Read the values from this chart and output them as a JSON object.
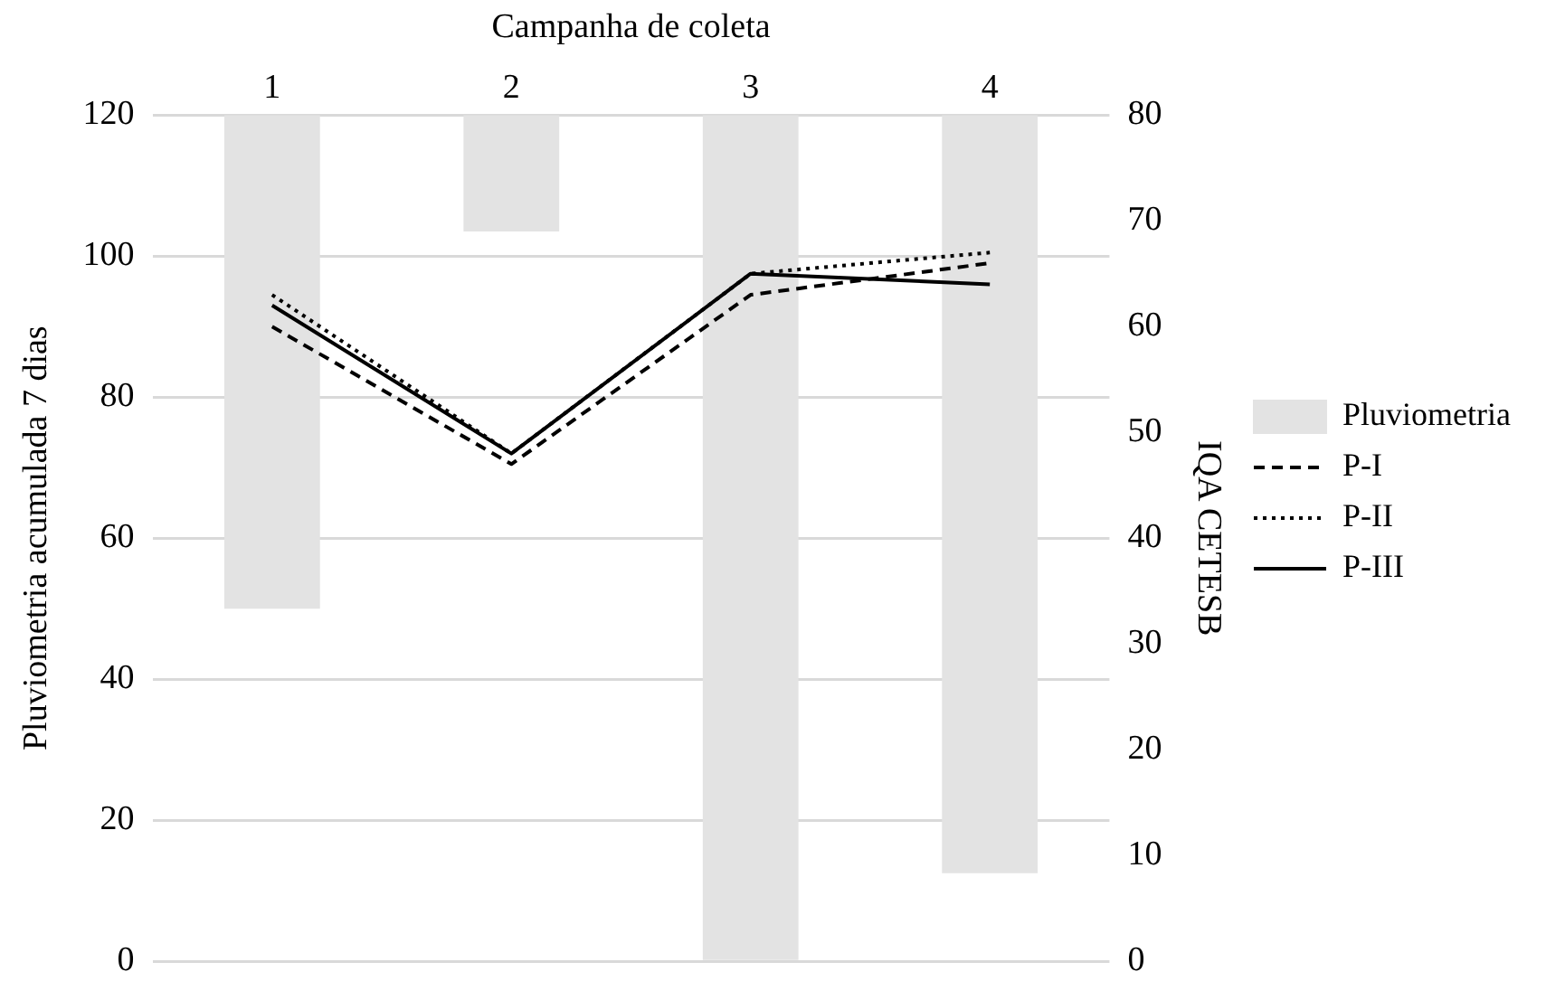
{
  "chart_data": {
    "type": "line",
    "xlabel": "Campanha de coleta",
    "ylabel": "Pluviometria acumulada 7 dias",
    "y2label": "IQA CETESB",
    "categories": [
      "1",
      "2",
      "3",
      "4"
    ],
    "series": [
      {
        "name": "Pluviometria",
        "type": "bar",
        "color": "#e3e3e3",
        "base": [
          120,
          120,
          120,
          120
        ],
        "values": [
          -70,
          -16.5,
          -120,
          -107.5
        ]
      },
      {
        "name": "P-I",
        "axis": "y2",
        "color": "#000000",
        "line_style": "dashed",
        "values": [
          60,
          47,
          63,
          66
        ]
      },
      {
        "name": "P-II",
        "axis": "y2",
        "color": "#000000",
        "line_style": "dotted",
        "values": [
          63,
          48,
          65,
          67
        ]
      },
      {
        "name": "P-III",
        "axis": "y2",
        "color": "#000000",
        "line_style": "solid",
        "values": [
          62,
          48,
          65,
          64
        ]
      }
    ],
    "ylim": [
      0,
      120
    ],
    "yticks": [
      0,
      20,
      40,
      60,
      80,
      100,
      120
    ],
    "y2lim": [
      0,
      80
    ],
    "y2ticks": [
      0,
      10,
      20,
      30,
      40,
      50,
      60,
      70,
      80
    ],
    "grid": "y",
    "legend": "right",
    "marker": "none"
  }
}
